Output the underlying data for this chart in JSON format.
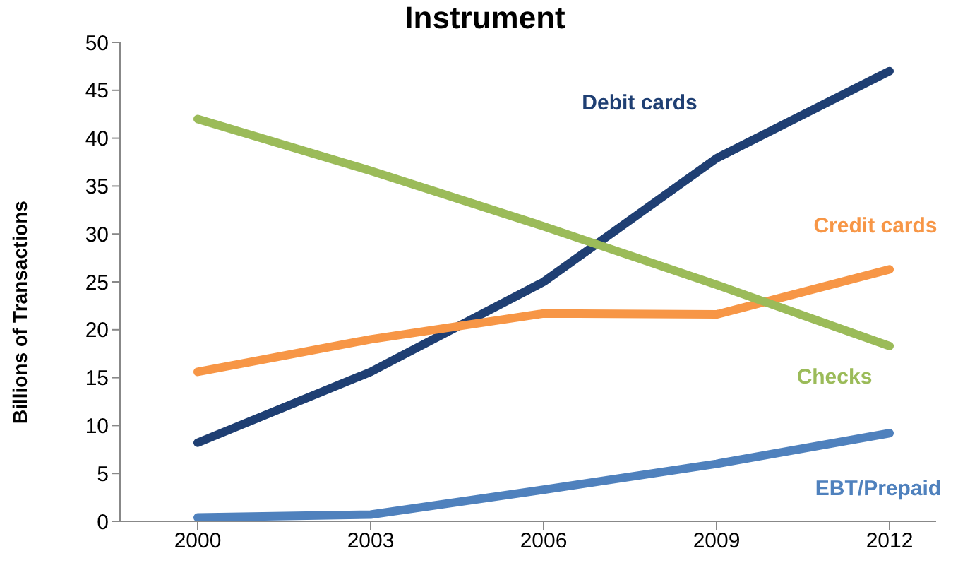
{
  "chart_data": {
    "type": "line",
    "title": "Instrument",
    "ylabel": "Billions of Transactions",
    "categories": [
      "2000",
      "2003",
      "2006",
      "2009",
      "2012"
    ],
    "series": [
      {
        "name": "Debit cards",
        "color": "#1f3f73",
        "values": [
          8.2,
          15.6,
          25,
          37.9,
          47
        ]
      },
      {
        "name": "Credit cards",
        "color": "#f79646",
        "values": [
          15.6,
          19,
          21.7,
          21.6,
          26.3
        ]
      },
      {
        "name": "Checks",
        "color": "#9bbb59",
        "values": [
          42,
          36.6,
          30.8,
          24.7,
          18.3
        ]
      },
      {
        "name": "EBT/Prepaid",
        "color": "#4f81bd",
        "values": [
          0.4,
          0.7,
          3.3,
          6,
          9.2
        ]
      }
    ],
    "ylim": [
      0,
      50
    ],
    "yticks": [
      0,
      5,
      10,
      15,
      20,
      25,
      30,
      35,
      40,
      45,
      50
    ],
    "grid": false,
    "legend": false,
    "marker": "none",
    "line_style": "solid"
  }
}
